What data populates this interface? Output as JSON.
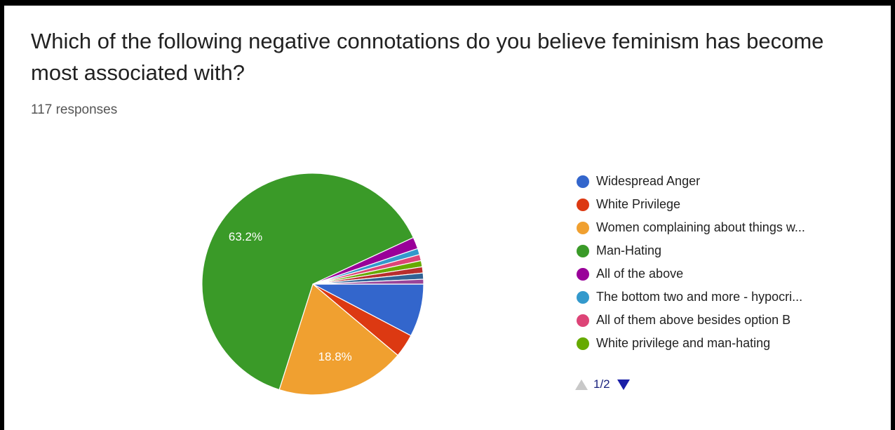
{
  "question": "Which of the following negative connotations do you believe feminism has become most associated with?",
  "responses_text": "117 responses",
  "chart_data": {
    "type": "pie",
    "title": "Which of the following negative connotations do you believe feminism has become most associated with?",
    "slices": [
      {
        "label": "Widespread Anger",
        "value": 7.7,
        "color": "#3366cc"
      },
      {
        "label": "White Privilege",
        "value": 3.4,
        "color": "#dc3912"
      },
      {
        "label": "Women complaining about things w...",
        "value": 18.8,
        "color": "#f0a030",
        "data_label": "18.8%"
      },
      {
        "label": "Man-Hating",
        "value": 63.2,
        "color": "#3a9a28",
        "data_label": "63.2%"
      },
      {
        "label": "All of the above",
        "value": 1.7,
        "color": "#990099"
      },
      {
        "label": "The bottom two and more - hypocri...",
        "value": 0.9,
        "color": "#3399cc"
      },
      {
        "label": "All of them above besides option B",
        "value": 0.9,
        "color": "#dd4477"
      },
      {
        "label": "White privilege and man-hating",
        "value": 0.9,
        "color": "#66aa00"
      },
      {
        "label": "",
        "value": 0.9,
        "color": "#b82e2e"
      },
      {
        "label": "",
        "value": 0.9,
        "color": "#316395"
      },
      {
        "label": "",
        "value": 0.7,
        "color": "#994499"
      }
    ]
  },
  "legend_pager": {
    "text": "1/2"
  }
}
